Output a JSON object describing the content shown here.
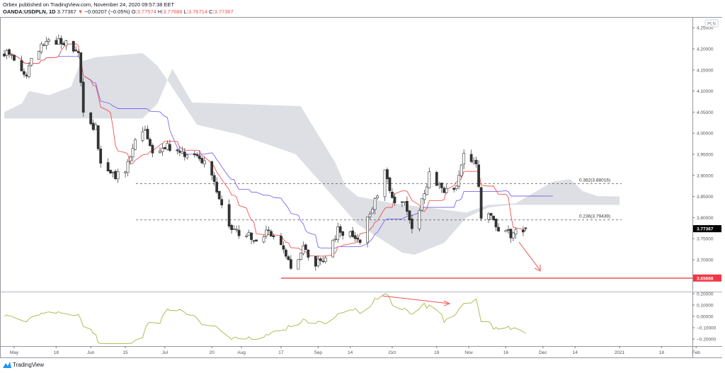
{
  "header": {
    "publisher_line": "Orbex published on TradingView.com, November 24, 2020 09:57:38 EET",
    "symbol": "OANDA:USDPLN, 1D",
    "last": "3.77367",
    "change": "−0.00207 (−0.05%)",
    "o_label": "O:",
    "o": "3.77574",
    "h_label": "H:",
    "h": "3.77686",
    "l_label": "L:",
    "l": "3.76714",
    "c_label": "C:",
    "c": "3.77367",
    "down_icon": "triangle-down-icon"
  },
  "footer": {
    "brand": "TradingView",
    "logo_icon": "tradingview-logo-icon"
  },
  "colors": {
    "tenkan": "#ef5350",
    "kijun": "#7b68ee",
    "cloud": "#d1d4dc",
    "annotation": "#ef5350",
    "oscillator": "#aab545",
    "candle_down": "#333333",
    "candle_up": "#ffffff"
  },
  "chart_data": {
    "type": "candlestick",
    "currency_label": "PLN",
    "price_ticks": [
      "4.25000",
      "4.20000",
      "4.15000",
      "4.10000",
      "4.05000",
      "4.00000",
      "3.95000",
      "3.90000",
      "3.85000",
      "3.80000",
      "3.75000",
      "3.70000"
    ],
    "price_tick_values": [
      4.25,
      4.2,
      4.15,
      4.1,
      4.05,
      4.0,
      3.95,
      3.9,
      3.85,
      3.8,
      3.75,
      3.7
    ],
    "last_price_label": "3.77367",
    "support_label": "3.65668",
    "support_value": 3.65668,
    "fib_levels": [
      {
        "label": "0.382(3.88016)",
        "value": 3.88016
      },
      {
        "label": "0.236(3.79439)",
        "value": 3.79439
      }
    ],
    "oscillator_ticks": [
      "0.20000",
      "0.10000",
      "0.00000",
      "−0.10000",
      "−0.20000"
    ],
    "oscillator_tick_values": [
      0.2,
      0.1,
      0,
      -0.1,
      -0.2
    ],
    "time_ticks": [
      {
        "label": "May",
        "date": "2020-05-01"
      },
      {
        "label": "18",
        "date": "2020-05-18"
      },
      {
        "label": "Jun",
        "date": "2020-06-01"
      },
      {
        "label": "15",
        "date": "2020-06-15"
      },
      {
        "label": "Jul",
        "date": "2020-07-01"
      },
      {
        "label": "20",
        "date": "2020-07-20"
      },
      {
        "label": "Aug",
        "date": "2020-08-01"
      },
      {
        "label": "17",
        "date": "2020-08-17"
      },
      {
        "label": "Sep",
        "date": "2020-09-01"
      },
      {
        "label": "14",
        "date": "2020-09-14"
      },
      {
        "label": "Oct",
        "date": "2020-10-01"
      },
      {
        "label": "19",
        "date": "2020-10-19"
      },
      {
        "label": "Nov",
        "date": "2020-11-01"
      },
      {
        "label": "16",
        "date": "2020-11-16"
      },
      {
        "label": "Dec",
        "date": "2020-12-01"
      },
      {
        "label": "14",
        "date": "2020-12-14"
      },
      {
        "label": "2021",
        "date": "2021-01-01"
      },
      {
        "label": "18",
        "date": "2021-01-18"
      },
      {
        "label": "Feb",
        "date": "2021-02-01"
      }
    ],
    "close_anchors": [
      [
        "2020-04-27",
        4.19
      ],
      [
        "2020-05-01",
        4.18
      ],
      [
        "2020-05-06",
        4.14
      ],
      [
        "2020-05-08",
        4.17
      ],
      [
        "2020-05-13",
        4.21
      ],
      [
        "2020-05-18",
        4.22
      ],
      [
        "2020-05-22",
        4.21
      ],
      [
        "2020-05-27",
        4.2
      ],
      [
        "2020-05-29",
        4.04
      ],
      [
        "2020-06-03",
        4.01
      ],
      [
        "2020-06-05",
        3.93
      ],
      [
        "2020-06-10",
        3.9
      ],
      [
        "2020-06-15",
        3.9
      ],
      [
        "2020-06-18",
        3.97
      ],
      [
        "2020-06-23",
        4.0
      ],
      [
        "2020-06-26",
        3.95
      ],
      [
        "2020-07-01",
        3.97
      ],
      [
        "2020-07-07",
        3.95
      ],
      [
        "2020-07-14",
        3.95
      ],
      [
        "2020-07-20",
        3.91
      ],
      [
        "2020-07-24",
        3.83
      ],
      [
        "2020-07-28",
        3.77
      ],
      [
        "2020-08-03",
        3.76
      ],
      [
        "2020-08-07",
        3.74
      ],
      [
        "2020-08-12",
        3.77
      ],
      [
        "2020-08-17",
        3.73
      ],
      [
        "2020-08-21",
        3.68
      ],
      [
        "2020-08-26",
        3.73
      ],
      [
        "2020-08-31",
        3.69
      ],
      [
        "2020-09-04",
        3.7
      ],
      [
        "2020-09-09",
        3.77
      ],
      [
        "2020-09-14",
        3.76
      ],
      [
        "2020-09-18",
        3.75
      ],
      [
        "2020-09-23",
        3.82
      ],
      [
        "2020-09-28",
        3.92
      ],
      [
        "2020-10-01",
        3.84
      ],
      [
        "2020-10-06",
        3.83
      ],
      [
        "2020-10-09",
        3.78
      ],
      [
        "2020-10-13",
        3.84
      ],
      [
        "2020-10-16",
        3.9
      ],
      [
        "2020-10-21",
        3.87
      ],
      [
        "2020-10-26",
        3.86
      ],
      [
        "2020-10-30",
        3.95
      ],
      [
        "2020-11-04",
        3.93
      ],
      [
        "2020-11-06",
        3.8
      ],
      [
        "2020-11-10",
        3.8
      ],
      [
        "2020-11-13",
        3.77
      ],
      [
        "2020-11-18",
        3.76
      ],
      [
        "2020-11-24",
        3.77367
      ]
    ],
    "cloud_upper": [
      [
        "2020-04-27",
        4.05
      ],
      [
        "2020-05-04",
        4.07
      ],
      [
        "2020-05-07",
        4.1
      ],
      [
        "2020-05-15",
        4.09
      ],
      [
        "2020-05-24",
        4.11
      ],
      [
        "2020-05-28",
        4.17
      ],
      [
        "2020-06-03",
        4.18
      ],
      [
        "2020-06-22",
        4.19
      ],
      [
        "2020-06-28",
        4.16
      ],
      [
        "2020-07-02",
        4.126
      ],
      [
        "2020-07-04",
        4.153
      ],
      [
        "2020-07-12",
        4.073
      ],
      [
        "2020-08-25",
        4.064
      ],
      [
        "2020-08-29",
        4.025
      ],
      [
        "2020-09-08",
        3.93
      ],
      [
        "2020-09-12",
        3.875
      ],
      [
        "2020-09-17",
        3.85
      ],
      [
        "2020-10-01",
        3.834
      ],
      [
        "2020-10-31",
        3.812
      ],
      [
        "2020-11-09",
        3.83
      ],
      [
        "2020-11-20",
        3.834
      ],
      [
        "2020-12-05",
        3.885
      ],
      [
        "2020-12-12",
        3.891
      ],
      [
        "2020-12-17",
        3.863
      ],
      [
        "2020-12-23",
        3.851
      ],
      [
        "2021-01-01",
        3.85
      ]
    ],
    "cloud_lower": [
      [
        "2020-04-27",
        4.035
      ],
      [
        "2020-06-22",
        4.035
      ],
      [
        "2020-06-28",
        4.07
      ],
      [
        "2020-07-02",
        4.126
      ],
      [
        "2020-07-14",
        4.02
      ],
      [
        "2020-07-31",
        3.997
      ],
      [
        "2020-08-23",
        3.95
      ],
      [
        "2020-09-17",
        3.784
      ],
      [
        "2020-10-05",
        3.717
      ],
      [
        "2020-10-10",
        3.712
      ],
      [
        "2020-10-22",
        3.74
      ],
      [
        "2020-10-31",
        3.8
      ],
      [
        "2020-11-09",
        3.824
      ],
      [
        "2020-11-18",
        3.83
      ],
      [
        "2021-01-01",
        3.83
      ]
    ]
  }
}
